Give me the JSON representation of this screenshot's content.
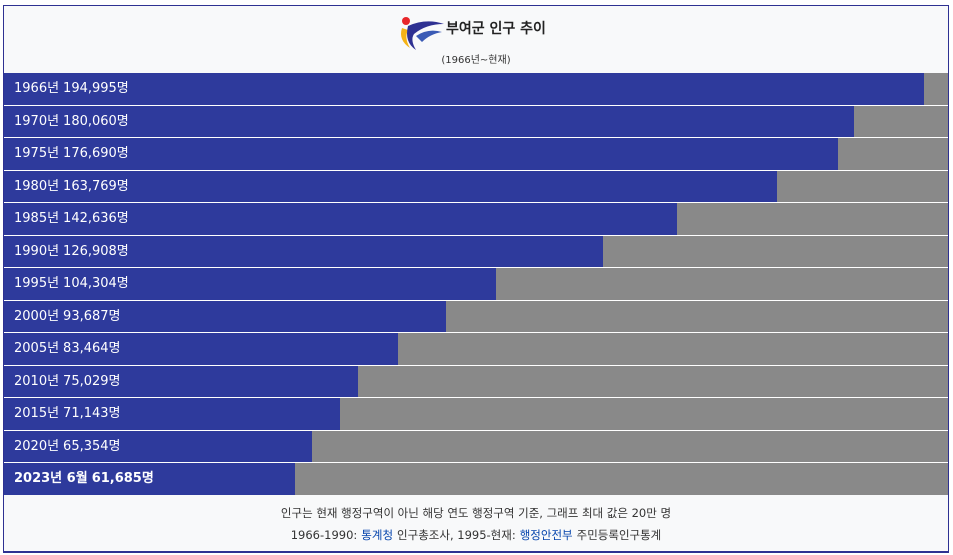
{
  "chart_data": {
    "type": "bar",
    "orientation": "horizontal",
    "title": "부여군 인구 추이",
    "subtitle": "(1966년~현재)",
    "categories": [
      "1966년",
      "1970년",
      "1975년",
      "1980년",
      "1985년",
      "1990년",
      "1995년",
      "2000년",
      "2005년",
      "2010년",
      "2015년",
      "2020년",
      "2023년 6월"
    ],
    "values": [
      194995,
      180060,
      176690,
      163769,
      142636,
      126908,
      104304,
      93687,
      83464,
      75029,
      71143,
      65354,
      61685
    ],
    "value_labels": [
      "194,995명",
      "180,060명",
      "176,690명",
      "163,769명",
      "142,636명",
      "126,908명",
      "104,304명",
      "93,687명",
      "83,464명",
      "75,029명",
      "71,143명",
      "65,354명",
      "61,685명"
    ],
    "xlim": [
      0,
      200000
    ],
    "color": "#2e3a9c",
    "track_color": "#898989",
    "note": "인구는 현재 행정구역이 아닌 해당 연도 행정구역 기준, 그래프 최대 값은 20만 명",
    "source": [
      "1966-1990:",
      "통계청",
      "인구총조사, 1995-현재:",
      "행정안전부",
      "주민등록인구통계"
    ]
  }
}
